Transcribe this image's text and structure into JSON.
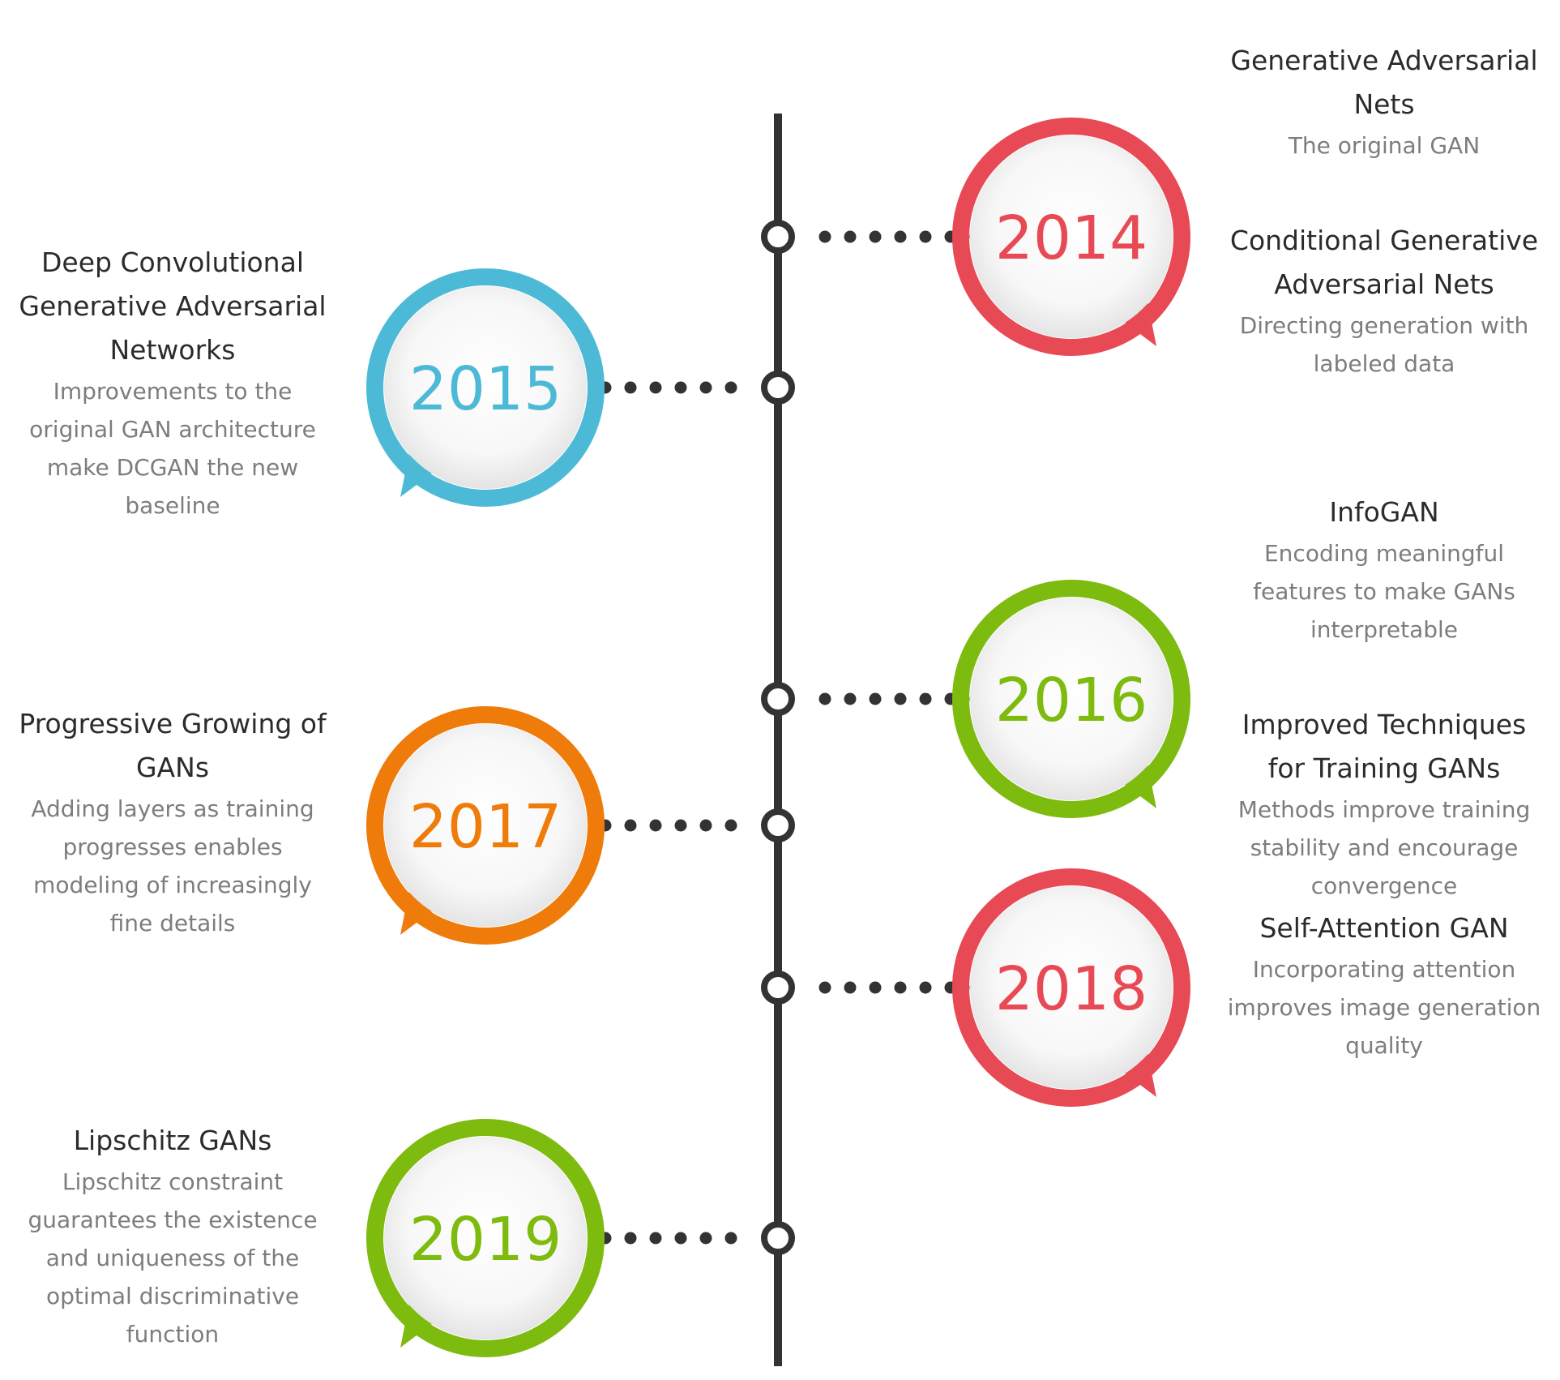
{
  "milestones": [
    {
      "year": "2014",
      "color": "#e84a55",
      "side": "right",
      "entries": [
        {
          "title": "Generative Adversarial Nets",
          "desc": "The original GAN"
        },
        {
          "title": "Conditional Generative Adversarial Nets",
          "desc": "Directing generation with labeled data"
        }
      ]
    },
    {
      "year": "2015",
      "color": "#4cbad6",
      "side": "left",
      "entries": [
        {
          "title": "Deep Convolutional Generative Adversarial Networks",
          "desc": "Improvements to the original GAN architecture make DCGAN the new baseline"
        }
      ]
    },
    {
      "year": "2016",
      "color": "#7ebb0f",
      "side": "right",
      "entries": [
        {
          "title": "InfoGAN",
          "desc": "Encoding meaningful features to make GANs interpretable"
        },
        {
          "title": "Improved Techniques for Training GANs",
          "desc": "Methods improve training stability and encourage convergence"
        }
      ]
    },
    {
      "year": "2017",
      "color": "#ef7b0a",
      "side": "left",
      "entries": [
        {
          "title": "Progressive Growing of GANs",
          "desc": "Adding layers as training progresses enables modeling of increasingly fine details"
        }
      ]
    },
    {
      "year": "2018",
      "color": "#e84a55",
      "side": "right",
      "entries": [
        {
          "title": "Self-Attention GAN",
          "desc": "Incorporating attention improves image generation quality"
        }
      ]
    },
    {
      "year": "2019",
      "color": "#7ebb0f",
      "side": "left",
      "entries": [
        {
          "title": "Lipschitz GANs",
          "desc": "Lipschitz constraint guarantees the existence and uniqueness of the optimal discriminative function"
        }
      ]
    }
  ]
}
